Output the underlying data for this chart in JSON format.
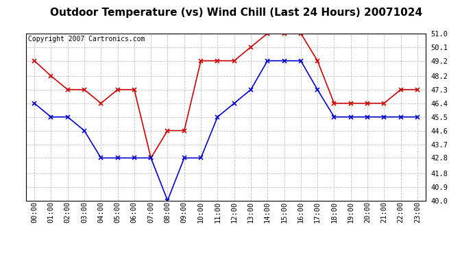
{
  "title": "Outdoor Temperature (vs) Wind Chill (Last 24 Hours) 20071024",
  "copyright_text": "Copyright 2007 Cartronics.com",
  "hours": [
    0,
    1,
    2,
    3,
    4,
    5,
    6,
    7,
    8,
    9,
    10,
    11,
    12,
    13,
    14,
    15,
    16,
    17,
    18,
    19,
    20,
    21,
    22,
    23
  ],
  "temp_red": [
    49.2,
    48.2,
    47.3,
    47.3,
    46.4,
    47.3,
    47.3,
    42.8,
    44.6,
    44.6,
    49.2,
    49.2,
    49.2,
    50.1,
    51.0,
    51.0,
    51.0,
    49.2,
    46.4,
    46.4,
    46.4,
    46.4,
    47.3,
    47.3
  ],
  "temp_blue": [
    46.4,
    45.5,
    45.5,
    44.6,
    42.8,
    42.8,
    42.8,
    42.8,
    40.0,
    42.8,
    42.8,
    45.5,
    46.4,
    47.3,
    49.2,
    49.2,
    49.2,
    47.3,
    45.5,
    45.5,
    45.5,
    45.5,
    45.5,
    45.5
  ],
  "red_color": "#cc0000",
  "blue_color": "#0000cc",
  "ylim_min": 40.0,
  "ylim_max": 51.0,
  "yticks": [
    40.0,
    40.9,
    41.8,
    42.8,
    43.7,
    44.6,
    45.5,
    46.4,
    47.3,
    48.2,
    49.2,
    50.1,
    51.0
  ],
  "background_color": "#ffffff",
  "plot_bg_color": "#ffffff",
  "grid_color": "#c0c0c0",
  "title_fontsize": 11,
  "copyright_fontsize": 7,
  "tick_label_fontsize": 7.5
}
